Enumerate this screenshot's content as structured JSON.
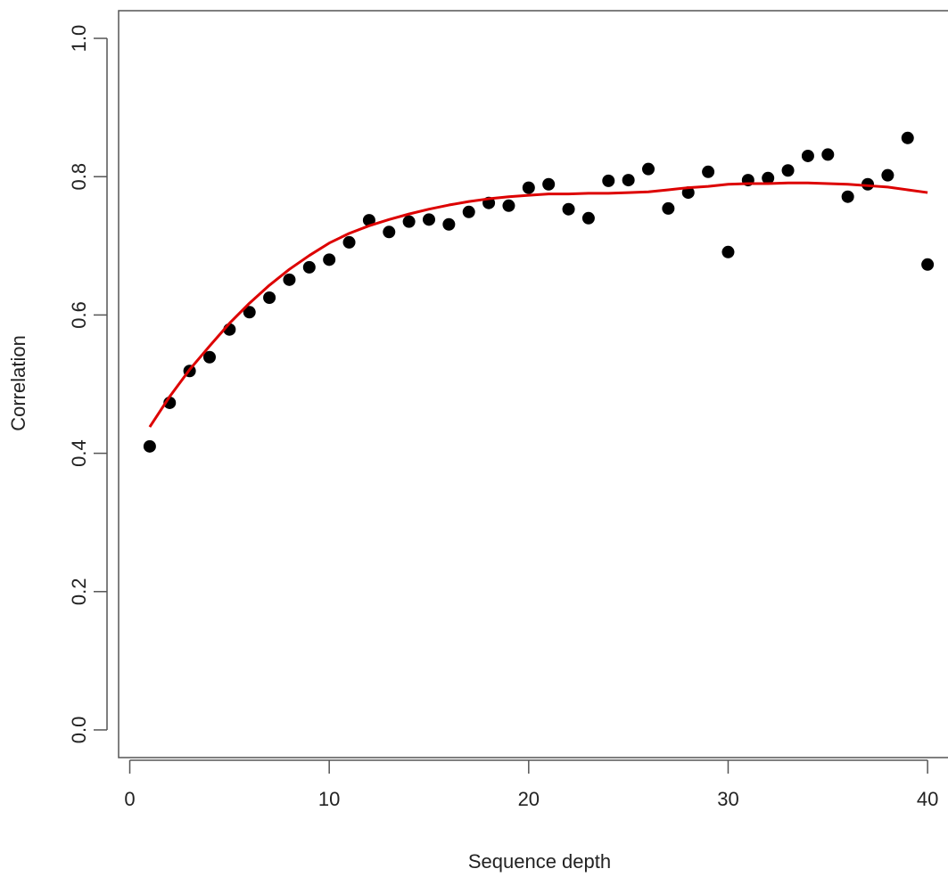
{
  "chart_data": {
    "type": "scatter",
    "xlabel": "Sequence depth",
    "ylabel": "Correlation",
    "x": [
      1,
      2,
      3,
      4,
      5,
      6,
      7,
      8,
      9,
      10,
      11,
      12,
      13,
      14,
      15,
      16,
      17,
      18,
      19,
      20,
      21,
      22,
      23,
      24,
      25,
      26,
      27,
      28,
      29,
      30,
      31,
      32,
      33,
      34,
      35,
      36,
      37,
      38,
      39,
      40
    ],
    "series": [
      {
        "type": "scatter",
        "color": "#000000",
        "values": [
          0.41,
          0.473,
          0.519,
          0.539,
          0.579,
          0.604,
          0.625,
          0.651,
          0.669,
          0.68,
          0.705,
          0.737,
          0.72,
          0.735,
          0.738,
          0.731,
          0.749,
          0.762,
          0.758,
          0.784,
          0.789,
          0.753,
          0.74,
          0.794,
          0.795,
          0.811,
          0.754,
          0.777,
          0.807,
          0.691,
          0.795,
          0.798,
          0.809,
          0.83,
          0.832,
          0.771,
          0.789,
          0.802,
          0.856,
          0.673
        ]
      },
      {
        "type": "line",
        "color": "#dd0000",
        "values": [
          0.438,
          0.482,
          0.521,
          0.555,
          0.588,
          0.617,
          0.643,
          0.666,
          0.686,
          0.704,
          0.718,
          0.729,
          0.738,
          0.746,
          0.753,
          0.759,
          0.764,
          0.768,
          0.771,
          0.773,
          0.775,
          0.775,
          0.776,
          0.776,
          0.777,
          0.778,
          0.781,
          0.784,
          0.786,
          0.789,
          0.79,
          0.79,
          0.791,
          0.791,
          0.79,
          0.789,
          0.787,
          0.785,
          0.781,
          0.777
        ]
      }
    ],
    "xlim": [
      -0.56,
      41.56
    ],
    "xticks": [
      0,
      10,
      20,
      30,
      40
    ],
    "ylim": [
      -0.04,
      1.04
    ],
    "yticks": [
      {
        "value": 0,
        "label": "0.0"
      },
      0.2,
      0.4,
      0.6,
      0.8,
      {
        "value": 1,
        "label": "1.0"
      }
    ]
  }
}
